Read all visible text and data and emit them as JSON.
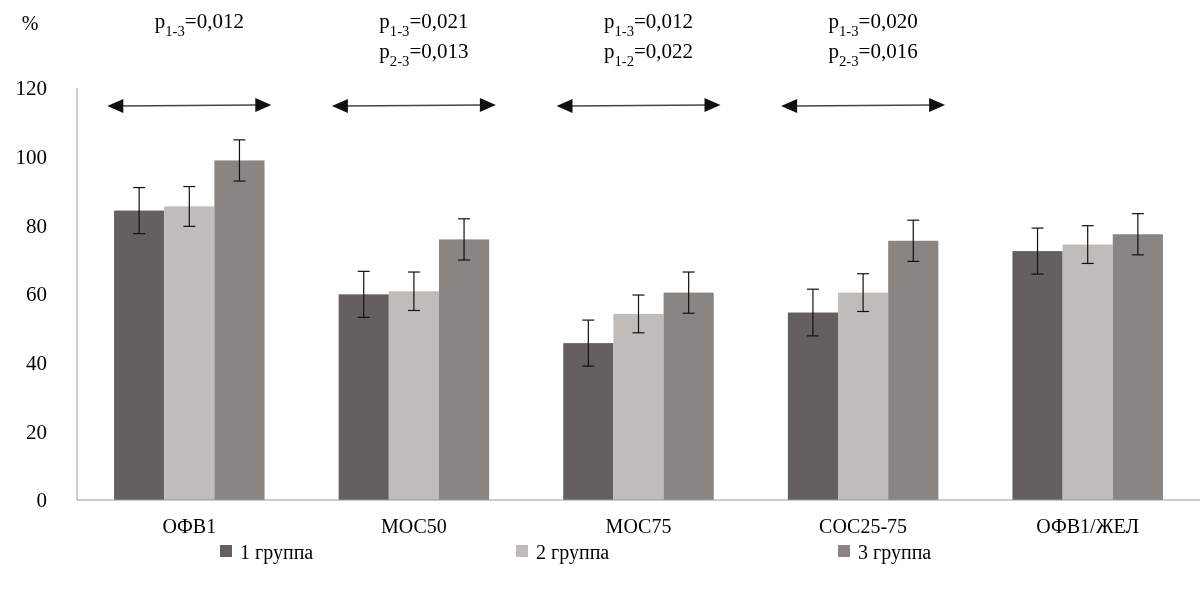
{
  "chart_data": {
    "type": "bar",
    "ylabel": "%",
    "categories": [
      "ОФВ1",
      "МОС50",
      "МОС75",
      "СОС25-75",
      "ОФВ1/ЖЕЛ"
    ],
    "ylim": [
      0,
      120
    ],
    "yticks": [
      0,
      20,
      40,
      60,
      80,
      100,
      120
    ],
    "grid": false,
    "legend": "bottom",
    "series": [
      {
        "name": "1 группа",
        "color": "#655f5e",
        "values": [
          84.3,
          59.9,
          45.7,
          54.6,
          72.5
        ],
        "errors": [
          6.7,
          6.7,
          6.7,
          6.8,
          6.7
        ]
      },
      {
        "name": "2 группа",
        "color": "#c0bcb9",
        "values": [
          85.5,
          60.8,
          54.2,
          60.4,
          74.4
        ],
        "errors": [
          5.8,
          5.6,
          5.5,
          5.5,
          5.5
        ]
      },
      {
        "name": "3 группа",
        "color": "#8a8582",
        "values": [
          98.9,
          75.9,
          60.4,
          75.5,
          77.4
        ],
        "errors": [
          6,
          6,
          6,
          6,
          6
        ]
      }
    ],
    "annotations": [
      "p$_{1-3}$=0,012",
      "p$_{1-3}$=0,021",
      "p$_{2-3}$=0,013",
      "p$_{1-3}$=0,012",
      "p$_{1-2}$=0,022",
      "p$_{1-3}$=0,020",
      "p$_{2-3}$=0,016"
    ]
  }
}
